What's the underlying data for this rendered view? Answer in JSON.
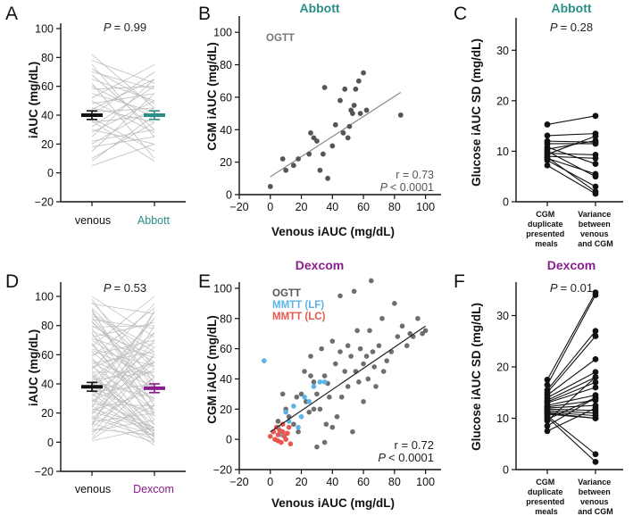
{
  "colors": {
    "abbott": "#2a8f86",
    "dexcom": "#8b1e8f",
    "ogtt": "#555555",
    "mmtt_lf": "#5ab4e5",
    "mmtt_lc": "#e8584f",
    "gray_line": "#bdbdbd",
    "fit_black": "#222222",
    "fit_gray": "#888888"
  },
  "chart_data": [
    {
      "panel": "A",
      "type": "line",
      "title": "",
      "ylabel": "iAUC (mg/dL)",
      "ylim": [
        -20,
        100
      ],
      "yticks": [
        -20,
        0,
        20,
        40,
        60,
        80,
        100
      ],
      "categories": [
        "venous",
        "Abbott"
      ],
      "p_text": "P = 0.99",
      "pairs": [
        [
          8,
          40
        ],
        [
          10,
          35
        ],
        [
          15,
          55
        ],
        [
          18,
          25
        ],
        [
          20,
          45
        ],
        [
          22,
          30
        ],
        [
          25,
          65
        ],
        [
          28,
          50
        ],
        [
          30,
          20
        ],
        [
          32,
          60
        ],
        [
          35,
          40
        ],
        [
          38,
          15
        ],
        [
          40,
          70
        ],
        [
          42,
          45
        ],
        [
          45,
          35
        ],
        [
          48,
          55
        ],
        [
          50,
          28
        ],
        [
          52,
          75
        ],
        [
          55,
          42
        ],
        [
          58,
          60
        ],
        [
          60,
          38
        ],
        [
          62,
          10
        ],
        [
          65,
          50
        ],
        [
          68,
          30
        ],
        [
          70,
          58
        ],
        [
          72,
          48
        ],
        [
          75,
          25
        ],
        [
          78,
          62
        ],
        [
          82,
          45
        ],
        [
          5,
          20
        ],
        [
          44,
          65
        ],
        [
          36,
          8
        ]
      ],
      "mean": [
        40,
        40
      ],
      "sem": [
        3,
        3
      ]
    },
    {
      "panel": "B",
      "type": "scatter",
      "title": "Abbott",
      "xlabel": "Venous iAUC (mg/dL)",
      "ylabel": "CGM iAUC (mg/dL)",
      "xlim": [
        -20,
        110
      ],
      "ylim": [
        0,
        110
      ],
      "xticks": [
        -20,
        0,
        20,
        40,
        60,
        80,
        100
      ],
      "yticks": [
        0,
        20,
        40,
        60,
        80,
        100
      ],
      "legend": [
        "OGTT"
      ],
      "r_text": "r = 0.73",
      "p_text": "P < 0.0001",
      "points": [
        [
          0,
          5
        ],
        [
          8,
          22
        ],
        [
          10,
          15
        ],
        [
          15,
          18
        ],
        [
          18,
          22
        ],
        [
          25,
          25
        ],
        [
          26,
          38
        ],
        [
          28,
          35
        ],
        [
          30,
          33
        ],
        [
          32,
          15
        ],
        [
          34,
          25
        ],
        [
          35,
          66
        ],
        [
          37,
          10
        ],
        [
          40,
          30
        ],
        [
          42,
          43
        ],
        [
          45,
          58
        ],
        [
          47,
          38
        ],
        [
          48,
          65
        ],
        [
          50,
          35
        ],
        [
          51,
          42
        ],
        [
          52,
          52
        ],
        [
          53,
          50
        ],
        [
          54,
          55
        ],
        [
          55,
          65
        ],
        [
          57,
          70
        ],
        [
          58,
          50
        ],
        [
          60,
          75
        ],
        [
          62,
          52
        ],
        [
          84,
          49
        ]
      ],
      "fit": [
        [
          0,
          11
        ],
        [
          84,
          63
        ]
      ]
    },
    {
      "panel": "C",
      "type": "line",
      "title": "Abbott",
      "ylabel": "Glucose iAUC SD (mg/dL)",
      "ylim": [
        0,
        35
      ],
      "yticks": [
        0,
        10,
        20,
        30
      ],
      "categories": [
        "CGM duplicate presented meals",
        "Variance between venous and CGM"
      ],
      "p_text": "P = 0.28",
      "pairs": [
        [
          15.3,
          17
        ],
        [
          13.1,
          13.5
        ],
        [
          12,
          11.8
        ],
        [
          11.5,
          11.5
        ],
        [
          10.8,
          7.5
        ],
        [
          10.4,
          12.1
        ],
        [
          10,
          5
        ],
        [
          9.6,
          9.3
        ],
        [
          9.4,
          13
        ],
        [
          9,
          8.6
        ],
        [
          8.6,
          5.5
        ],
        [
          8.2,
          3
        ],
        [
          7.2,
          1.6
        ],
        [
          8.8,
          2
        ]
      ]
    },
    {
      "panel": "D",
      "type": "line",
      "title": "",
      "ylabel": "iAUC (mg/dL)",
      "ylim": [
        -20,
        110
      ],
      "yticks": [
        -20,
        0,
        20,
        40,
        60,
        80,
        100
      ],
      "categories": [
        "venous",
        "Dexcom"
      ],
      "p_text": "P = 0.53",
      "pairs": [
        [
          2,
          30
        ],
        [
          5,
          60
        ],
        [
          8,
          15
        ],
        [
          10,
          45
        ],
        [
          12,
          80
        ],
        [
          14,
          20
        ],
        [
          16,
          55
        ],
        [
          18,
          5
        ],
        [
          20,
          70
        ],
        [
          22,
          35
        ],
        [
          24,
          90
        ],
        [
          26,
          25
        ],
        [
          28,
          50
        ],
        [
          30,
          10
        ],
        [
          32,
          65
        ],
        [
          34,
          40
        ],
        [
          36,
          85
        ],
        [
          38,
          18
        ],
        [
          40,
          55
        ],
        [
          42,
          30
        ],
        [
          44,
          75
        ],
        [
          46,
          12
        ],
        [
          48,
          48
        ],
        [
          50,
          95
        ],
        [
          52,
          22
        ],
        [
          54,
          62
        ],
        [
          56,
          38
        ],
        [
          58,
          8
        ],
        [
          60,
          70
        ],
        [
          62,
          28
        ],
        [
          64,
          52
        ],
        [
          66,
          100
        ],
        [
          68,
          15
        ],
        [
          70,
          42
        ],
        [
          72,
          82
        ],
        [
          74,
          35
        ],
        [
          76,
          60
        ],
        [
          78,
          20
        ],
        [
          80,
          55
        ],
        [
          82,
          45
        ],
        [
          84,
          78
        ],
        [
          86,
          32
        ],
        [
          88,
          65
        ],
        [
          90,
          25
        ],
        [
          92,
          50
        ],
        [
          95,
          88
        ],
        [
          98,
          40
        ],
        [
          100,
          72
        ],
        [
          3,
          45
        ],
        [
          7,
          25
        ],
        [
          11,
          90
        ],
        [
          15,
          40
        ],
        [
          19,
          60
        ],
        [
          23,
          10
        ],
        [
          27,
          75
        ],
        [
          31,
          55
        ],
        [
          35,
          20
        ],
        [
          39,
          85
        ],
        [
          43,
          48
        ],
        [
          47,
          5
        ],
        [
          51,
          68
        ],
        [
          55,
          30
        ],
        [
          59,
          92
        ],
        [
          63,
          45
        ],
        [
          67,
          22
        ],
        [
          71,
          58
        ],
        [
          75,
          12
        ],
        [
          79,
          80
        ],
        [
          83,
          38
        ],
        [
          87,
          62
        ],
        [
          91,
          18
        ],
        [
          96,
          52
        ],
        [
          1,
          10
        ],
        [
          9,
          5
        ],
        [
          13,
          0
        ],
        [
          17,
          2
        ],
        [
          21,
          8
        ],
        [
          25,
          -2
        ],
        [
          29,
          4
        ],
        [
          33,
          6
        ],
        [
          37,
          1
        ],
        [
          41,
          3
        ],
        [
          45,
          7
        ],
        [
          49,
          0
        ],
        [
          53,
          5
        ]
      ],
      "mean": [
        38,
        37
      ],
      "sem": [
        3,
        3
      ]
    },
    {
      "panel": "E",
      "type": "scatter",
      "title": "Dexcom",
      "xlabel": "Venous iAUC (mg/dL)",
      "ylabel": "CGM iAUC (mg/dL)",
      "xlim": [
        -20,
        110
      ],
      "ylim": [
        -20,
        110
      ],
      "xticks": [
        -20,
        0,
        20,
        40,
        60,
        80,
        100
      ],
      "yticks": [
        -20,
        0,
        20,
        40,
        60,
        80,
        100
      ],
      "legend": [
        "OGTT",
        "MMTT (LF)",
        "MMTT (LC)"
      ],
      "r_text": "r = 0.72",
      "p_text": "P < 0.0001",
      "ogtt": [
        [
          5,
          12
        ],
        [
          8,
          30
        ],
        [
          10,
          20
        ],
        [
          12,
          15
        ],
        [
          15,
          10
        ],
        [
          17,
          28
        ],
        [
          18,
          5
        ],
        [
          20,
          30
        ],
        [
          22,
          45
        ],
        [
          23,
          25
        ],
        [
          25,
          18
        ],
        [
          26,
          55
        ],
        [
          28,
          38
        ],
        [
          30,
          30
        ],
        [
          32,
          20
        ],
        [
          33,
          60
        ],
        [
          35,
          42
        ],
        [
          36,
          10
        ],
        [
          37,
          37
        ],
        [
          38,
          28
        ],
        [
          40,
          65
        ],
        [
          40,
          8
        ],
        [
          42,
          50
        ],
        [
          43,
          15
        ],
        [
          45,
          58
        ],
        [
          45,
          95
        ],
        [
          46,
          28
        ],
        [
          48,
          45
        ],
        [
          50,
          35
        ],
        [
          50,
          62
        ],
        [
          52,
          55
        ],
        [
          53,
          5
        ],
        [
          54,
          98
        ],
        [
          55,
          45
        ],
        [
          56,
          72
        ],
        [
          57,
          38
        ],
        [
          58,
          60
        ],
        [
          60,
          50
        ],
        [
          60,
          25
        ],
        [
          62,
          55
        ],
        [
          63,
          40
        ],
        [
          64,
          72
        ],
        [
          65,
          105
        ],
        [
          66,
          58
        ],
        [
          67,
          48
        ],
        [
          68,
          35
        ],
        [
          70,
          62
        ],
        [
          72,
          80
        ],
        [
          73,
          45
        ],
        [
          75,
          52
        ],
        [
          78,
          58
        ],
        [
          80,
          90
        ],
        [
          82,
          68
        ],
        [
          85,
          75
        ],
        [
          88,
          62
        ],
        [
          90,
          70
        ],
        [
          92,
          68
        ],
        [
          95,
          80
        ],
        [
          98,
          70
        ],
        [
          100,
          72
        ],
        [
          30,
          -5
        ],
        [
          35,
          -2
        ],
        [
          26,
          42
        ],
        [
          28,
          20
        ]
      ],
      "mmtt_lf": [
        [
          -4,
          52
        ],
        [
          2,
          5
        ],
        [
          5,
          8
        ],
        [
          7,
          3
        ],
        [
          10,
          18
        ],
        [
          12,
          12
        ],
        [
          15,
          22
        ],
        [
          20,
          15
        ],
        [
          22,
          28
        ],
        [
          25,
          25
        ],
        [
          28,
          35
        ],
        [
          32,
          38
        ],
        [
          35,
          38
        ],
        [
          18,
          8
        ]
      ],
      "mmtt_lc": [
        [
          0,
          2
        ],
        [
          2,
          5
        ],
        [
          3,
          0
        ],
        [
          4,
          8
        ],
        [
          5,
          3
        ],
        [
          6,
          6
        ],
        [
          7,
          -2
        ],
        [
          8,
          5
        ],
        [
          9,
          2
        ],
        [
          10,
          0
        ],
        [
          11,
          4
        ],
        [
          12,
          8
        ],
        [
          13,
          -3
        ],
        [
          8,
          10
        ],
        [
          5,
          -1
        ]
      ],
      "fit": [
        [
          0,
          5
        ],
        [
          100,
          75
        ]
      ]
    },
    {
      "panel": "F",
      "type": "line",
      "title": "Dexcom",
      "ylabel": "Glucose iAUC SD (mg/dL)",
      "ylim": [
        0,
        36
      ],
      "yticks": [
        0,
        10,
        20,
        30
      ],
      "categories": [
        "CGM duplicate presented meals",
        "Variance between venous and CGM"
      ],
      "p_text": "P = 0.01",
      "pairs": [
        [
          17.5,
          34.5
        ],
        [
          16.5,
          34
        ],
        [
          15.5,
          27
        ],
        [
          15,
          26
        ],
        [
          14.5,
          21.5
        ],
        [
          14,
          19
        ],
        [
          13.5,
          18
        ],
        [
          13.2,
          17
        ],
        [
          13,
          16
        ],
        [
          12.5,
          14.5
        ],
        [
          12.2,
          13.5
        ],
        [
          12,
          12.5
        ],
        [
          11.8,
          11.5
        ],
        [
          11.5,
          11
        ],
        [
          11.2,
          10.5
        ],
        [
          11,
          10
        ],
        [
          10.8,
          10
        ],
        [
          10.5,
          3
        ],
        [
          10.2,
          1.5
        ],
        [
          9.8,
          14
        ],
        [
          9.5,
          18
        ],
        [
          8.5,
          14
        ],
        [
          7.5,
          12
        ]
      ]
    }
  ],
  "panel_labels": [
    "A",
    "B",
    "C",
    "D",
    "E",
    "F"
  ],
  "text": {
    "a_ylabel": "iAUC (mg/dL)",
    "a_cat1": "venous",
    "a_cat2": "Abbott",
    "a_p": "= 0.99",
    "b_title": "Abbott",
    "b_ylabel": "CGM iAUC (mg/dL)",
    "b_xlabel": "Venous iAUC (mg/dL)",
    "b_legend": "OGTT",
    "b_r": "r = 0.73",
    "b_p": "< 0.0001",
    "c_title": "Abbott",
    "c_ylabel": "Glucose iAUC SD (mg/dL)",
    "c_p": "= 0.28",
    "cat_left": [
      "CGM",
      "duplicate",
      "presented",
      "meals"
    ],
    "cat_right": [
      "Variance",
      "between",
      "venous",
      "and CGM"
    ],
    "d_ylabel": "iAUC (mg/dL)",
    "d_cat1": "venous",
    "d_cat2": "Dexcom",
    "d_p": "= 0.53",
    "e_title": "Dexcom",
    "e_ylabel": "CGM iAUC (mg/dL)",
    "e_xlabel": "Venous iAUC (mg/dL)",
    "e_leg1": "OGTT",
    "e_leg2": "MMTT (LF)",
    "e_leg3": "MMTT (LC)",
    "e_r": "r = 0.72",
    "e_p": "< 0.0001",
    "f_title": "Dexcom",
    "f_ylabel": "Glucose iAUC SD (mg/dL)",
    "f_p": "= 0.01",
    "p_letter": "P"
  }
}
